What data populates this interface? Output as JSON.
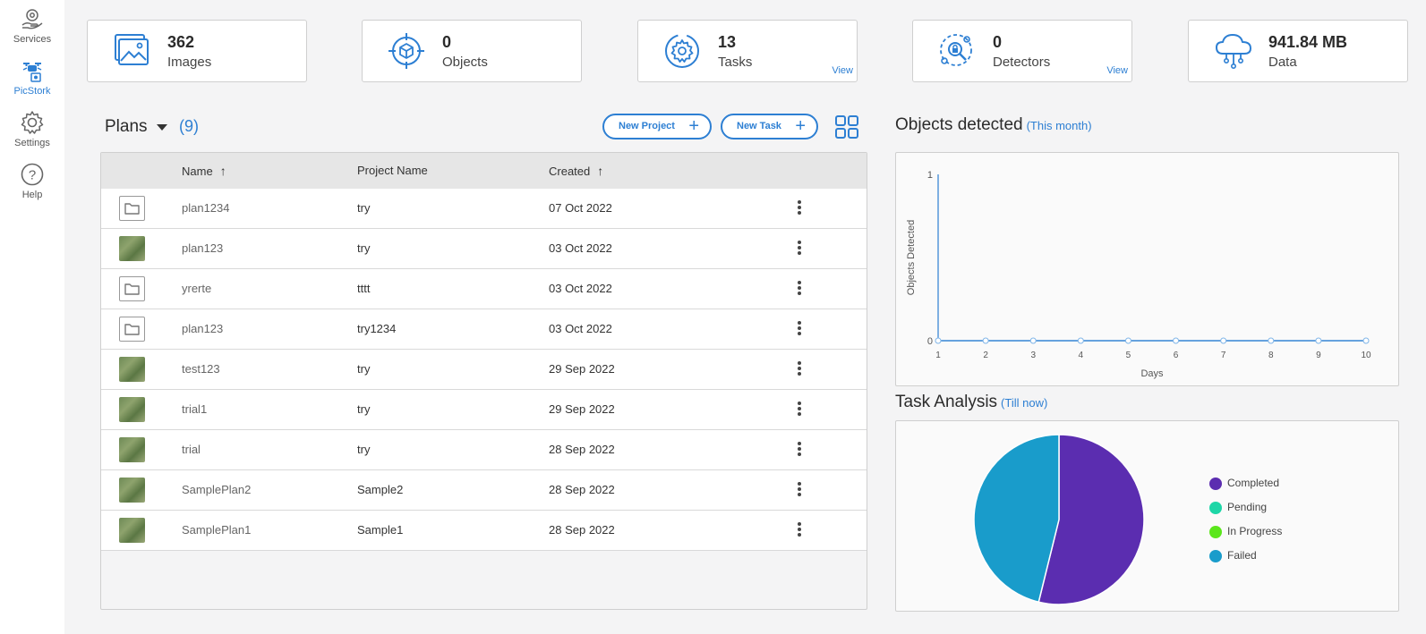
{
  "sidebar": {
    "items": [
      {
        "label": "Services",
        "icon": "services-icon"
      },
      {
        "label": "PicStork",
        "icon": "drone-icon",
        "active": true
      },
      {
        "label": "Settings",
        "icon": "gear-icon"
      },
      {
        "label": "Help",
        "icon": "help-icon"
      }
    ]
  },
  "stats": [
    {
      "value": "362",
      "label": "Images",
      "icon": "images-icon"
    },
    {
      "value": "0",
      "label": "Objects",
      "icon": "objects-icon"
    },
    {
      "value": "13",
      "label": "Tasks",
      "icon": "tasks-icon",
      "link": "View"
    },
    {
      "value": "0",
      "label": "Detectors",
      "icon": "detectors-icon",
      "link": "View"
    },
    {
      "value": "941.84 MB",
      "label": "Data",
      "icon": "cloud-icon"
    }
  ],
  "plans": {
    "title": "Plans",
    "count": "(9)",
    "new_project": "New Project",
    "new_task": "New Task",
    "columns": {
      "name": "Name",
      "project": "Project Name",
      "created": "Created"
    },
    "rows": [
      {
        "name": "plan1234",
        "project": "try",
        "created": "07 Oct 2022",
        "thumb": "folder"
      },
      {
        "name": "plan123",
        "project": "try",
        "created": "03 Oct 2022",
        "thumb": "photo"
      },
      {
        "name": "yrerte",
        "project": "tttt",
        "created": "03 Oct 2022",
        "thumb": "folder"
      },
      {
        "name": "plan123",
        "project": "try1234",
        "created": "03 Oct 2022",
        "thumb": "folder"
      },
      {
        "name": "test123",
        "project": "try",
        "created": "29 Sep 2022",
        "thumb": "photo"
      },
      {
        "name": "trial1",
        "project": "try",
        "created": "29 Sep 2022",
        "thumb": "photo"
      },
      {
        "name": "trial",
        "project": "try",
        "created": "28 Sep 2022",
        "thumb": "photo"
      },
      {
        "name": "SamplePlan2",
        "project": "Sample2",
        "created": "28 Sep 2022",
        "thumb": "photo"
      },
      {
        "name": "SamplePlan1",
        "project": "Sample1",
        "created": "28 Sep 2022",
        "thumb": "photo"
      }
    ]
  },
  "objects_detected": {
    "title": "Objects detected",
    "subtitle": "(This month)",
    "chart_data": {
      "type": "line",
      "x": [
        1,
        2,
        3,
        4,
        5,
        6,
        7,
        8,
        9,
        10
      ],
      "values": [
        0,
        0,
        0,
        0,
        0,
        0,
        0,
        0,
        0,
        0
      ],
      "xlabel": "Days",
      "ylabel": "Objects Detected",
      "ylim": [
        0,
        1
      ],
      "yticks": [
        "0",
        "1"
      ],
      "color": "#2d7fd3"
    }
  },
  "task_analysis": {
    "title": "Task Analysis",
    "subtitle": "(Till now)",
    "chart_data": {
      "type": "pie",
      "categories": [
        "Completed",
        "Pending",
        "In Progress",
        "Failed"
      ],
      "values": [
        7,
        0,
        0,
        6
      ],
      "colors": [
        "#5b2db0",
        "#1ed6a7",
        "#5be61c",
        "#199ccb"
      ]
    }
  }
}
